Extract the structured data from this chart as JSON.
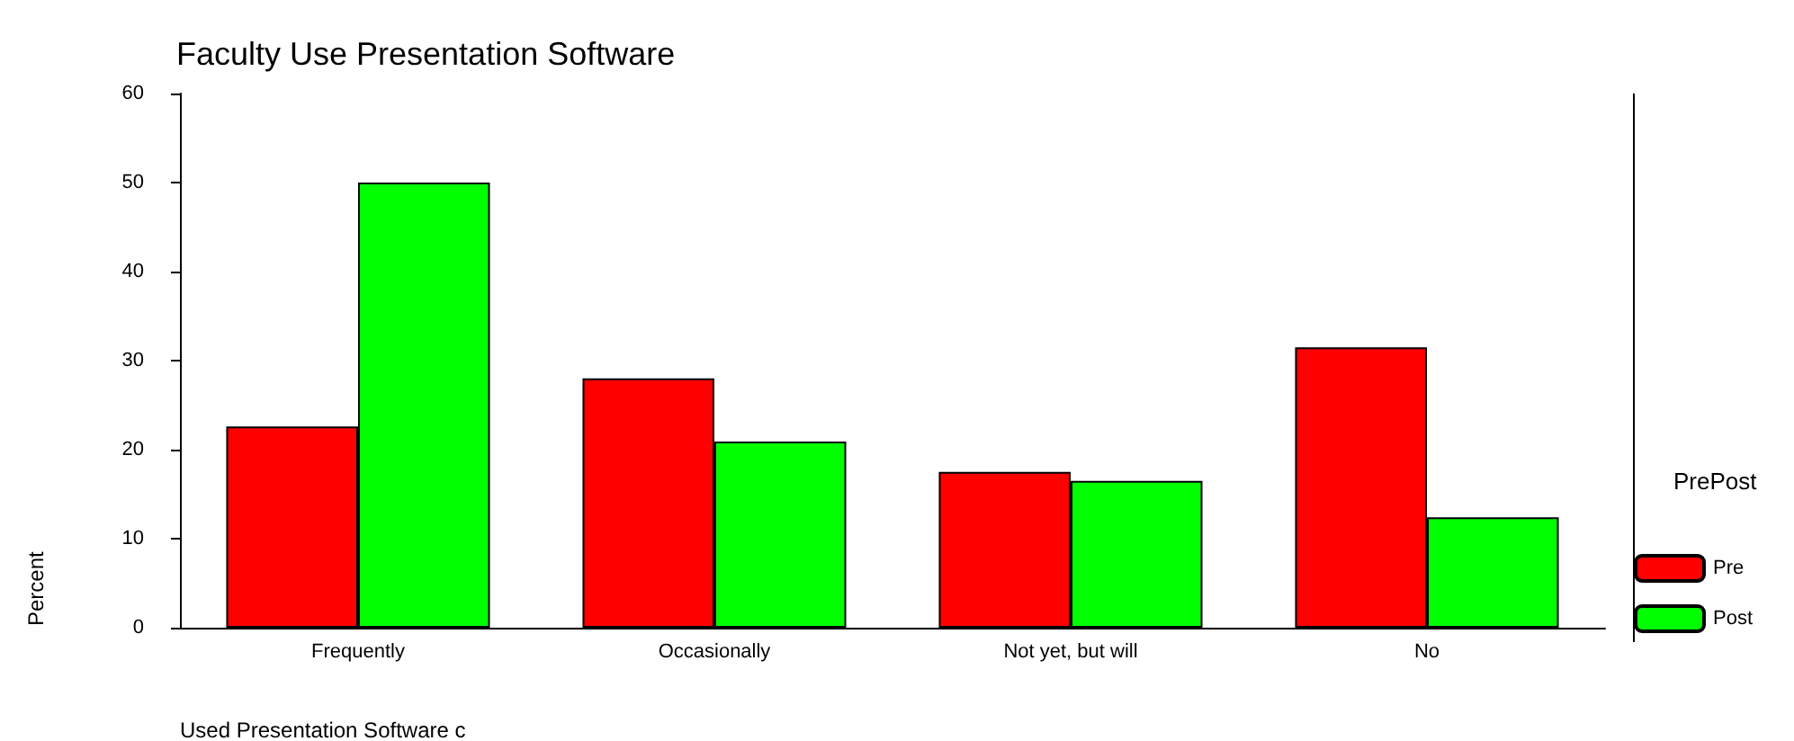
{
  "chart_data": {
    "type": "bar",
    "title": "Faculty Use Presentation Software",
    "xlabel": "Used Presentation Software c",
    "ylabel": "Percent",
    "legend_title": "PrePost",
    "categories": [
      "Frequently",
      "Occasionally",
      "Not yet, but will",
      "No"
    ],
    "series": [
      {
        "name": "Pre",
        "color": "#ff0000",
        "values": [
          22.6,
          28.0,
          17.5,
          31.5
        ]
      },
      {
        "name": "Post",
        "color": "#00ff00",
        "values": [
          50.0,
          20.9,
          16.5,
          12.4
        ]
      }
    ],
    "ylim": [
      0,
      60
    ],
    "yticks": [
      0,
      10,
      20,
      30,
      40,
      50,
      60
    ],
    "grid": false,
    "legend": "right"
  }
}
